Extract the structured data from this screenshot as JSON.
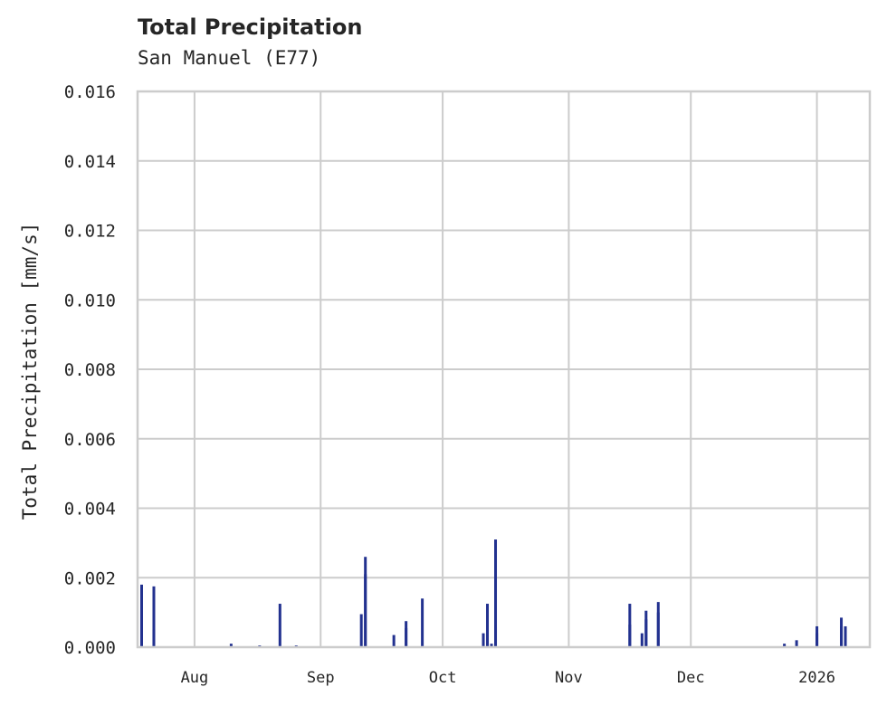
{
  "header": {
    "title": "Total Precipitation",
    "subtitle": "San Manuel (E77)"
  },
  "chart_data": {
    "type": "bar",
    "title": "Total Precipitation",
    "subtitle": "San Manuel (E77)",
    "xlabel": "",
    "ylabel": "Total Precipitation [mm/s]",
    "ylim": [
      0,
      0.016
    ],
    "yticks": [
      "0.000",
      "0.002",
      "0.004",
      "0.006",
      "0.008",
      "0.010",
      "0.012",
      "0.014",
      "0.016"
    ],
    "xticks": [
      {
        "label": "Aug",
        "date": "2025-08-01"
      },
      {
        "label": "Sep",
        "date": "2025-09-01"
      },
      {
        "label": "Oct",
        "date": "2025-10-01"
      },
      {
        "label": "Nov",
        "date": "2025-11-01"
      },
      {
        "label": "Dec",
        "date": "2025-12-01"
      },
      {
        "label": "2026",
        "date": "2026-01-01"
      }
    ],
    "xrange": [
      "2025-07-18",
      "2026-01-14"
    ],
    "grid": true,
    "legend": null,
    "bar_color": "#22318f",
    "series": [
      {
        "name": "Total Precipitation",
        "points": [
          {
            "date": "2025-07-19",
            "value": 0.00105
          },
          {
            "date": "2025-07-19",
            "value": 0.0018
          },
          {
            "date": "2025-07-22",
            "value": 0.00175
          },
          {
            "date": "2025-07-22",
            "value": 0.0005
          },
          {
            "date": "2025-08-10",
            "value": 0.0001
          },
          {
            "date": "2025-08-17",
            "value": 5e-05
          },
          {
            "date": "2025-08-22",
            "value": 0.00125
          },
          {
            "date": "2025-08-26",
            "value": 5e-05
          },
          {
            "date": "2025-09-11",
            "value": 0.00095
          },
          {
            "date": "2025-09-12",
            "value": 0.0021
          },
          {
            "date": "2025-09-12",
            "value": 0.0026
          },
          {
            "date": "2025-09-19",
            "value": 0.00035
          },
          {
            "date": "2025-09-22",
            "value": 0.00075
          },
          {
            "date": "2025-09-22",
            "value": 0.00055
          },
          {
            "date": "2025-09-26",
            "value": 0.0014
          },
          {
            "date": "2025-10-11",
            "value": 0.0004
          },
          {
            "date": "2025-10-12",
            "value": 0.00125
          },
          {
            "date": "2025-10-13",
            "value": 0.0001
          },
          {
            "date": "2025-10-14",
            "value": 0.0031
          },
          {
            "date": "2025-10-14",
            "value": 0.0006
          },
          {
            "date": "2025-11-16",
            "value": 0.00065
          },
          {
            "date": "2025-11-16",
            "value": 0.00125
          },
          {
            "date": "2025-11-19",
            "value": 0.0004
          },
          {
            "date": "2025-11-20",
            "value": 0.0008
          },
          {
            "date": "2025-11-20",
            "value": 0.00105
          },
          {
            "date": "2025-11-23",
            "value": 0.001
          },
          {
            "date": "2025-11-23",
            "value": 0.0013
          },
          {
            "date": "2025-12-24",
            "value": 5e-05
          },
          {
            "date": "2025-12-24",
            "value": 0.0001
          },
          {
            "date": "2025-12-27",
            "value": 0.0002
          },
          {
            "date": "2026-01-01",
            "value": 0.0006
          },
          {
            "date": "2026-01-01",
            "value": 0.0004
          },
          {
            "date": "2026-01-07",
            "value": 0.0006
          },
          {
            "date": "2026-01-07",
            "value": 0.00085
          },
          {
            "date": "2026-01-08",
            "value": 0.0006
          }
        ]
      }
    ]
  }
}
